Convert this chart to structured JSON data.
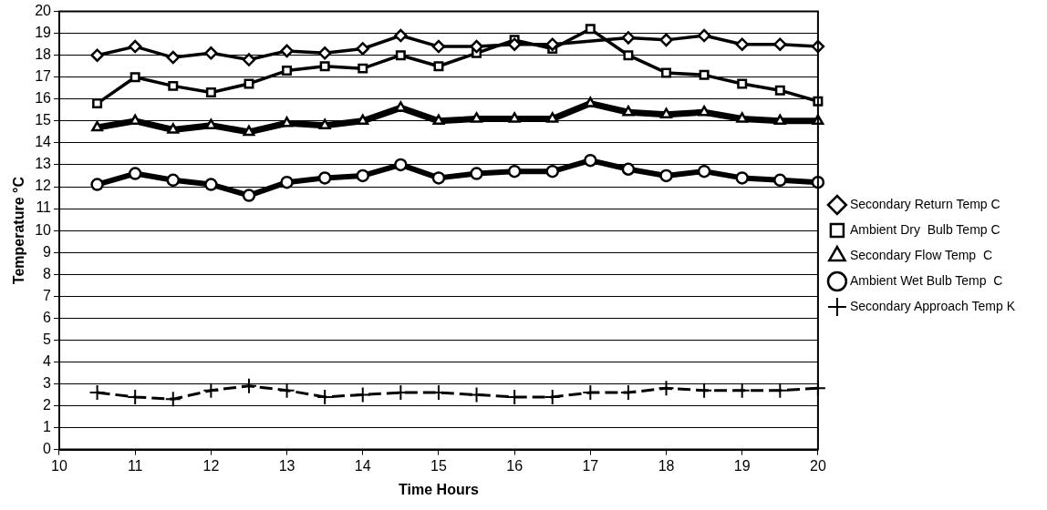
{
  "chart_data": {
    "type": "line",
    "xlabel": "Time Hours",
    "ylabel": "Temperature °C",
    "x": [
      10.5,
      11,
      11.5,
      12,
      12.5,
      13,
      13.5,
      14,
      14.5,
      15,
      15.5,
      16,
      16.5,
      17,
      17.5,
      18,
      18.5,
      19,
      19.5,
      20
    ],
    "xlim": [
      10,
      20
    ],
    "xticks": [
      10,
      11,
      12,
      13,
      14,
      15,
      16,
      17,
      18,
      19,
      20
    ],
    "ylim": [
      0,
      20
    ],
    "yticks": [
      0,
      1,
      2,
      3,
      4,
      5,
      6,
      7,
      8,
      9,
      10,
      11,
      12,
      13,
      14,
      15,
      16,
      17,
      18,
      19,
      20
    ],
    "grid": "y",
    "legend": "right",
    "series": [
      {
        "name": "Secondary Return Temp C",
        "color": "#000000",
        "marker": "diamond",
        "line_style": "solid",
        "values": [
          18.0,
          18.4,
          17.9,
          18.1,
          17.8,
          18.2,
          18.1,
          18.3,
          18.9,
          18.4,
          18.4,
          18.5,
          18.5,
          null,
          18.8,
          18.7,
          18.9,
          18.5,
          18.5,
          18.4
        ]
      },
      {
        "name": "Ambient Dry  Bulb Temp C",
        "color": "#000000",
        "marker": "square",
        "line_style": "solid",
        "values": [
          15.8,
          17.0,
          16.6,
          16.3,
          16.7,
          17.3,
          17.5,
          17.4,
          18.0,
          17.5,
          18.1,
          18.7,
          18.3,
          19.2,
          18.0,
          17.2,
          17.1,
          16.7,
          16.4,
          15.9
        ]
      },
      {
        "name": "Secondary Flow Temp  C",
        "color": "#000000",
        "marker": "triangle",
        "line_style": "solid",
        "values": [
          14.7,
          15.0,
          14.6,
          14.8,
          14.5,
          14.9,
          14.8,
          15.0,
          15.6,
          15.0,
          15.1,
          15.1,
          15.1,
          15.8,
          15.4,
          15.3,
          15.4,
          15.1,
          15.0,
          15.0
        ]
      },
      {
        "name": "Ambient Wet Bulb Temp  C",
        "color": "#000000",
        "marker": "circle",
        "line_style": "solid",
        "values": [
          12.1,
          12.6,
          12.3,
          12.1,
          11.6,
          12.2,
          12.4,
          12.5,
          13.0,
          12.4,
          12.6,
          12.7,
          12.7,
          13.2,
          12.8,
          12.5,
          12.7,
          12.4,
          12.3,
          12.2
        ]
      },
      {
        "name": "Secondary Approach Temp K",
        "color": "#000000",
        "marker": "cross",
        "line_style": "dashed",
        "values": [
          2.6,
          2.4,
          2.3,
          2.7,
          2.9,
          2.7,
          2.4,
          2.5,
          2.6,
          2.6,
          2.5,
          2.4,
          2.4,
          2.6,
          2.6,
          2.8,
          2.7,
          2.7,
          2.7,
          2.8
        ]
      }
    ]
  }
}
